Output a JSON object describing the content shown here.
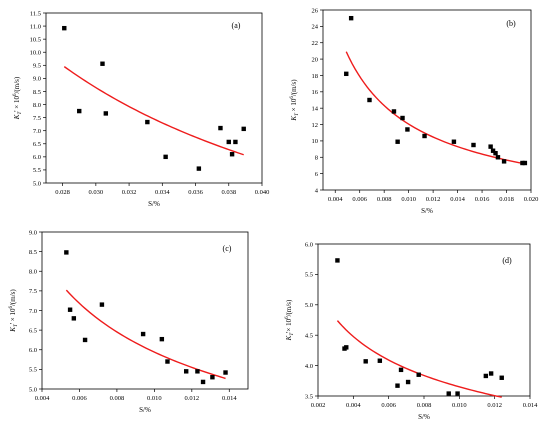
{
  "chart_data": [
    {
      "type": "scatter",
      "panel_label": "(a)",
      "xlabel": "S/%",
      "ylabel": "K_T' × 10^6/(m/s)",
      "ylabel_parts": {
        "main": "K",
        "sub": "T",
        "prime": "'",
        "rest": " × 10",
        "sup": "6",
        "tail": "/(m/s)"
      },
      "xlim": [
        0.027,
        0.04
      ],
      "ylim": [
        5.0,
        11.5
      ],
      "xticks": [
        0.028,
        0.03,
        0.032,
        0.034,
        0.036,
        0.038,
        0.04
      ],
      "xtick_labels": [
        "0.028",
        "0.030",
        "0.032",
        "0.034",
        "0.036",
        "0.038",
        "0.040"
      ],
      "yticks": [
        5.0,
        5.5,
        6.0,
        6.5,
        7.0,
        7.5,
        8.0,
        8.5,
        9.0,
        9.5,
        10.0,
        10.5,
        11.0,
        11.5
      ],
      "ytick_labels": [
        "5.0",
        "5.5",
        "6.0",
        "6.5",
        "7.0",
        "7.5",
        "8.0",
        "8.5",
        "9.0",
        "9.5",
        "10.0",
        "10.5",
        "11.0",
        "11.5"
      ],
      "points": [
        [
          0.0281,
          10.92
        ],
        [
          0.029,
          7.75
        ],
        [
          0.0304,
          9.56
        ],
        [
          0.0306,
          7.66
        ],
        [
          0.0331,
          7.33
        ],
        [
          0.0342,
          6.0
        ],
        [
          0.0362,
          5.55
        ],
        [
          0.0375,
          7.1
        ],
        [
          0.038,
          6.57
        ],
        [
          0.0382,
          6.1
        ],
        [
          0.0384,
          6.57
        ],
        [
          0.0389,
          7.07
        ]
      ],
      "fit": {
        "x": [
          0.0281,
          0.0389
        ],
        "y_start": 9.45,
        "y_end": 6.08,
        "color": "#ee1c1c"
      },
      "grid": false
    },
    {
      "type": "scatter",
      "panel_label": "(b)",
      "xlabel": "S/%",
      "ylabel": "K_T × 10^6/(m/s)",
      "ylabel_parts": {
        "main": "K",
        "sub": "T",
        "prime": "",
        "rest": " × 10",
        "sup": "6",
        "tail": "/(m/s)"
      },
      "xlim": [
        0.003,
        0.02
      ],
      "ylim": [
        4,
        26
      ],
      "xticks": [
        0.004,
        0.006,
        0.008,
        0.01,
        0.012,
        0.014,
        0.016,
        0.018,
        0.02
      ],
      "xtick_labels": [
        "0.004",
        "0.006",
        "0.008",
        "0.010",
        "0.012",
        "0.014",
        "0.016",
        "0.018",
        "0.020"
      ],
      "yticks": [
        4,
        6,
        8,
        10,
        12,
        14,
        16,
        18,
        20,
        22,
        24,
        26
      ],
      "ytick_labels": [
        "4",
        "6",
        "8",
        "10",
        "12",
        "14",
        "16",
        "18",
        "20",
        "22",
        "24",
        "26"
      ],
      "points": [
        [
          0.0049,
          18.2
        ],
        [
          0.0053,
          25.0
        ],
        [
          0.0068,
          15.0
        ],
        [
          0.0088,
          13.6
        ],
        [
          0.0091,
          9.9
        ],
        [
          0.0095,
          12.8
        ],
        [
          0.0099,
          11.4
        ],
        [
          0.0113,
          10.6
        ],
        [
          0.0137,
          9.9
        ],
        [
          0.0153,
          9.5
        ],
        [
          0.0167,
          9.3
        ],
        [
          0.0169,
          8.8
        ],
        [
          0.0171,
          8.5
        ],
        [
          0.0173,
          8.0
        ],
        [
          0.0178,
          7.5
        ],
        [
          0.0193,
          7.3
        ],
        [
          0.0195,
          7.3
        ]
      ],
      "fit": {
        "x": [
          0.0049,
          0.0195
        ],
        "y_start": 20.9,
        "y_end": 7.2,
        "color": "#ee1c1c"
      },
      "grid": false
    },
    {
      "type": "scatter",
      "panel_label": "(c)",
      "xlabel": "S/%",
      "ylabel": "K_T' × 10^6/(m/s)",
      "ylabel_parts": {
        "main": "K",
        "sub": "T",
        "prime": "'",
        "rest": " × 10",
        "sup": "6",
        "tail": "/(m/s)"
      },
      "xlim": [
        0.004,
        0.015
      ],
      "ylim": [
        5.0,
        9.0
      ],
      "xticks": [
        0.004,
        0.006,
        0.008,
        0.01,
        0.012,
        0.014
      ],
      "xtick_labels": [
        "0.004",
        "0.006",
        "0.008",
        "0.010",
        "0.012",
        "0.014"
      ],
      "yticks": [
        5.0,
        5.5,
        6.0,
        6.5,
        7.0,
        7.5,
        8.0,
        8.5,
        9.0
      ],
      "ytick_labels": [
        "5.0",
        "5.5",
        "6.0",
        "6.5",
        "7.0",
        "7.5",
        "8.0",
        "8.5",
        "9.0"
      ],
      "points": [
        [
          0.0053,
          8.48
        ],
        [
          0.0055,
          7.02
        ],
        [
          0.0057,
          6.8
        ],
        [
          0.0063,
          6.25
        ],
        [
          0.0072,
          7.15
        ],
        [
          0.0094,
          6.4
        ],
        [
          0.0104,
          6.27
        ],
        [
          0.0107,
          5.7
        ],
        [
          0.0117,
          5.45
        ],
        [
          0.0123,
          5.45
        ],
        [
          0.0126,
          5.18
        ],
        [
          0.0131,
          5.3
        ],
        [
          0.0138,
          5.42
        ]
      ],
      "fit": {
        "x": [
          0.0053,
          0.0138
        ],
        "y_start": 7.52,
        "y_end": 5.27,
        "color": "#ee1c1c"
      },
      "grid": false
    },
    {
      "type": "scatter",
      "panel_label": "(d)",
      "xlabel": "S/%",
      "ylabel": "K_T'× 10^6/(m/s)",
      "ylabel_parts": {
        "main": "K",
        "sub": "T",
        "prime": "'",
        "rest": "× 10",
        "sup": "6",
        "tail": "/(m/s)"
      },
      "xlim": [
        0.002,
        0.014
      ],
      "ylim": [
        3.5,
        6.0
      ],
      "xticks": [
        0.002,
        0.004,
        0.006,
        0.008,
        0.01,
        0.012,
        0.014
      ],
      "xtick_labels": [
        "0.002",
        "0.004",
        "0.006",
        "0.008",
        "0.010",
        "0.012",
        "0.014"
      ],
      "yticks": [
        3.5,
        4.0,
        4.5,
        5.0,
        5.5,
        6.0
      ],
      "ytick_labels": [
        "3.5",
        "4.0",
        "4.5",
        "5.0",
        "5.5",
        "6.0"
      ],
      "points": [
        [
          0.0031,
          5.73
        ],
        [
          0.0035,
          4.28
        ],
        [
          0.0036,
          4.3
        ],
        [
          0.0047,
          4.07
        ],
        [
          0.0055,
          4.08
        ],
        [
          0.0065,
          3.67
        ],
        [
          0.0067,
          3.93
        ],
        [
          0.0071,
          3.73
        ],
        [
          0.0077,
          3.85
        ],
        [
          0.0094,
          3.54
        ],
        [
          0.0099,
          3.54
        ],
        [
          0.0115,
          3.83
        ],
        [
          0.0118,
          3.87
        ],
        [
          0.0124,
          3.8
        ]
      ],
      "fit": {
        "x": [
          0.0031,
          0.0124
        ],
        "y_start": 4.74,
        "y_end": 3.48,
        "color": "#ee1c1c"
      },
      "grid": false
    }
  ]
}
